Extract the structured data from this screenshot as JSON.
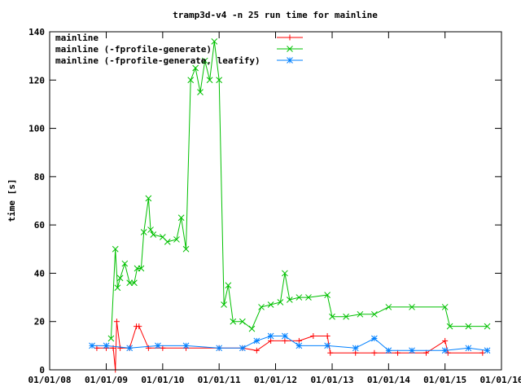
{
  "chart_data": {
    "type": "line",
    "title": "tramp3d-v4 -n 25 run time for mainline",
    "xlabel": "",
    "ylabel": "time [s]",
    "ylim": [
      0,
      140
    ],
    "yticks": [
      0,
      20,
      40,
      60,
      80,
      100,
      120,
      140
    ],
    "xlim": [
      "2008-01-01",
      "2016-01-01"
    ],
    "xticks": [
      {
        "date": "2008-01-01",
        "label": "01/01/08"
      },
      {
        "date": "2009-01-01",
        "label": "01/01/09"
      },
      {
        "date": "2010-01-01",
        "label": "01/01/10"
      },
      {
        "date": "2011-01-01",
        "label": "01/01/11"
      },
      {
        "date": "2012-01-01",
        "label": "01/01/12"
      },
      {
        "date": "2013-01-01",
        "label": "01/01/13"
      },
      {
        "date": "2014-01-01",
        "label": "01/01/14"
      },
      {
        "date": "2015-01-01",
        "label": "01/01/15"
      },
      {
        "date": "2016-01-01",
        "label": "01/01/16"
      }
    ],
    "grid": false,
    "legend": "top-left",
    "series": [
      {
        "name": "mainline",
        "color": "#ff0000",
        "marker": "plus",
        "points": [
          [
            "2008-11-01",
            9
          ],
          [
            "2009-01-01",
            9
          ],
          [
            "2009-02-15",
            9
          ],
          [
            "2009-03-01",
            0
          ],
          [
            "2009-03-10",
            20
          ],
          [
            "2009-04-01",
            9
          ],
          [
            "2009-06-01",
            9
          ],
          [
            "2009-07-15",
            18
          ],
          [
            "2009-08-01",
            18
          ],
          [
            "2009-10-01",
            9
          ],
          [
            "2010-01-01",
            9
          ],
          [
            "2010-06-01",
            9
          ],
          [
            "2011-01-01",
            9
          ],
          [
            "2011-06-01",
            9
          ],
          [
            "2011-09-01",
            8
          ],
          [
            "2011-12-01",
            12
          ],
          [
            "2012-03-01",
            12
          ],
          [
            "2012-06-01",
            12
          ],
          [
            "2012-09-01",
            14
          ],
          [
            "2012-12-01",
            14
          ],
          [
            "2012-12-20",
            7
          ],
          [
            "2013-06-01",
            7
          ],
          [
            "2013-10-01",
            7
          ],
          [
            "2014-03-01",
            7
          ],
          [
            "2014-09-01",
            7
          ],
          [
            "2015-01-01",
            12
          ],
          [
            "2015-01-20",
            7
          ],
          [
            "2015-09-01",
            7
          ]
        ]
      },
      {
        "name": "mainline (-fprofile-generate)",
        "color": "#00c000",
        "marker": "cross",
        "points": [
          [
            "2009-02-01",
            13
          ],
          [
            "2009-03-01",
            50
          ],
          [
            "2009-03-15",
            34
          ],
          [
            "2009-04-01",
            38
          ],
          [
            "2009-05-01",
            44
          ],
          [
            "2009-06-01",
            36
          ],
          [
            "2009-07-01",
            36
          ],
          [
            "2009-07-20",
            42
          ],
          [
            "2009-08-15",
            42
          ],
          [
            "2009-09-01",
            57
          ],
          [
            "2009-10-01",
            71
          ],
          [
            "2009-10-15",
            58
          ],
          [
            "2009-11-01",
            56
          ],
          [
            "2010-01-01",
            55
          ],
          [
            "2010-02-01",
            53
          ],
          [
            "2010-04-01",
            54
          ],
          [
            "2010-05-01",
            63
          ],
          [
            "2010-06-01",
            50
          ],
          [
            "2010-07-01",
            120
          ],
          [
            "2010-08-01",
            125
          ],
          [
            "2010-09-01",
            115
          ],
          [
            "2010-10-01",
            128
          ],
          [
            "2010-11-01",
            120
          ],
          [
            "2010-12-01",
            136
          ],
          [
            "2011-01-01",
            120
          ],
          [
            "2011-02-01",
            27
          ],
          [
            "2011-03-01",
            35
          ],
          [
            "2011-04-01",
            20
          ],
          [
            "2011-06-01",
            20
          ],
          [
            "2011-08-01",
            17
          ],
          [
            "2011-10-01",
            26
          ],
          [
            "2011-12-01",
            27
          ],
          [
            "2012-02-01",
            28
          ],
          [
            "2012-03-01",
            40
          ],
          [
            "2012-04-01",
            29
          ],
          [
            "2012-06-01",
            30
          ],
          [
            "2012-08-01",
            30
          ],
          [
            "2012-12-01",
            31
          ],
          [
            "2013-01-01",
            22
          ],
          [
            "2013-04-01",
            22
          ],
          [
            "2013-07-01",
            23
          ],
          [
            "2013-10-01",
            23
          ],
          [
            "2014-01-01",
            26
          ],
          [
            "2014-06-01",
            26
          ],
          [
            "2015-01-01",
            26
          ],
          [
            "2015-02-01",
            18
          ],
          [
            "2015-06-01",
            18
          ],
          [
            "2015-10-01",
            18
          ]
        ]
      },
      {
        "name": "mainline (-fprofile-generate, leafify)",
        "color": "#0080ff",
        "marker": "star",
        "points": [
          [
            "2008-10-01",
            10
          ],
          [
            "2009-01-01",
            10
          ],
          [
            "2009-06-01",
            9
          ],
          [
            "2009-12-01",
            10
          ],
          [
            "2010-06-01",
            10
          ],
          [
            "2011-01-01",
            9
          ],
          [
            "2011-06-01",
            9
          ],
          [
            "2011-09-01",
            12
          ],
          [
            "2011-12-01",
            14
          ],
          [
            "2012-03-01",
            14
          ],
          [
            "2012-06-01",
            10
          ],
          [
            "2012-12-01",
            10
          ],
          [
            "2013-06-01",
            9
          ],
          [
            "2013-10-01",
            13
          ],
          [
            "2014-01-01",
            8
          ],
          [
            "2014-06-01",
            8
          ],
          [
            "2015-01-01",
            8
          ],
          [
            "2015-06-01",
            9
          ],
          [
            "2015-10-01",
            8
          ]
        ]
      }
    ]
  }
}
